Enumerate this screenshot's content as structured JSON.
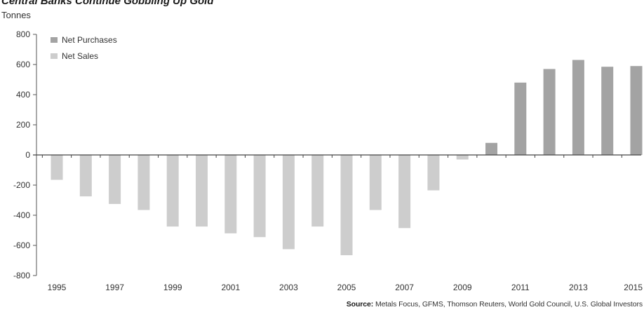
{
  "chart_data": {
    "type": "bar",
    "title": "Central Banks Continue Gobbling Up Gold",
    "ylabel": "Tonnes",
    "xlabel": "",
    "ylim": [
      -800,
      800
    ],
    "yticks": [
      "800",
      "600",
      "400",
      "200",
      "0",
      "-200",
      "-400",
      "-600",
      "-800"
    ],
    "xticklabels": [
      "1995",
      "1997",
      "1999",
      "2001",
      "2003",
      "2005",
      "2007",
      "2009",
      "2011",
      "2013",
      "2015"
    ],
    "categories": [
      "1995",
      "1996",
      "1997",
      "1998",
      "1999",
      "2000",
      "2001",
      "2002",
      "2003",
      "2004",
      "2005",
      "2006",
      "2007",
      "2008",
      "2009",
      "2010",
      "2011",
      "2012",
      "2013",
      "2014",
      "2015"
    ],
    "values": [
      -165,
      -275,
      -325,
      -365,
      -475,
      -475,
      -520,
      -545,
      -625,
      -475,
      -665,
      -365,
      -485,
      -235,
      -30,
      80,
      480,
      570,
      630,
      585,
      590
    ],
    "series": [
      {
        "name": "Net Purchases",
        "color": "#a3a3a3"
      },
      {
        "name": "Net Sales",
        "color": "#cdcdcd"
      }
    ],
    "legend_position": "top-left",
    "grid": false,
    "source_label": "Source:",
    "source_text": " Metals Focus, GFMS, Thomson Reuters, World Gold Council, U.S. Global Investors"
  }
}
